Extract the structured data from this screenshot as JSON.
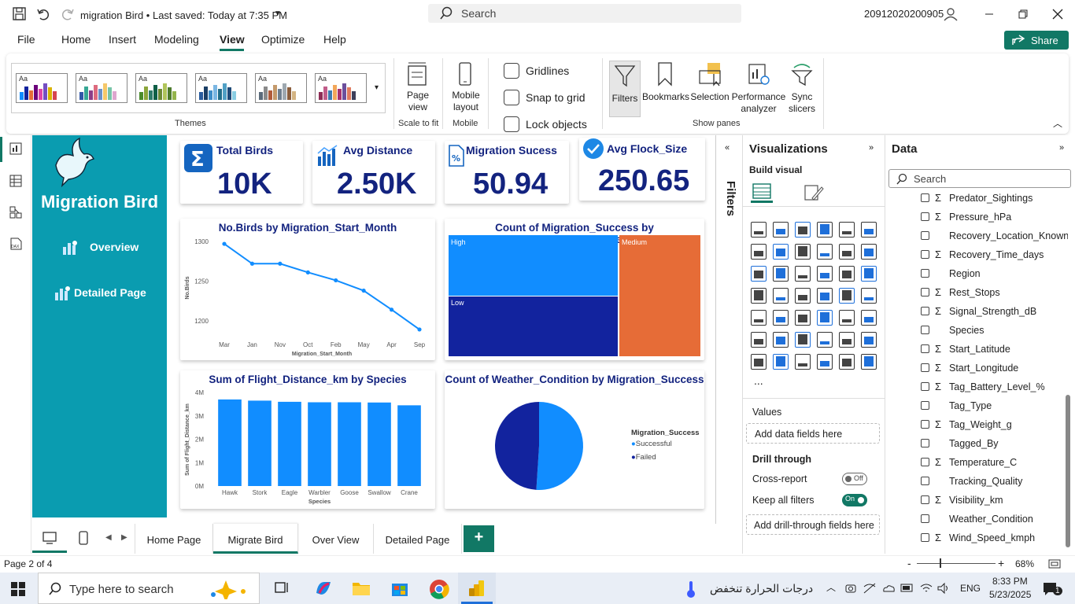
{
  "titlebar": {
    "doc_title": "migration Bird • Last saved: Today at 7:35 PM",
    "search_placeholder": "Search",
    "user_id": "20912020200905"
  },
  "menu": {
    "items": [
      "File",
      "Home",
      "Insert",
      "Modeling",
      "View",
      "Optimize",
      "Help"
    ],
    "active": "View",
    "share": "Share"
  },
  "ribbon": {
    "themes_label": "Themes",
    "theme_aa": "Aa",
    "page_view": "Page view",
    "scale_to_fit": "Scale to fit",
    "mobile_layout": "Mobile layout",
    "mobile": "Mobile",
    "gridlines": "Gridlines",
    "snap_to_grid": "Snap to grid",
    "lock_objects": "Lock objects",
    "filters": "Filters",
    "bookmarks": "Bookmarks",
    "selection": "Selection",
    "performance": "Performance analyzer",
    "sync": "Sync slicers",
    "show_panes": "Show panes"
  },
  "report": {
    "brand": "Migration Bird",
    "nav_overview": "Overview",
    "nav_detailed": "Detailed Page",
    "kpis": [
      {
        "label": "Total Birds",
        "value": "10K"
      },
      {
        "label": "Avg Distance",
        "value": "2.50K"
      },
      {
        "label": "Migration Sucess",
        "value": "50.94"
      },
      {
        "label": "Avg Flock_Size",
        "value": "250.65"
      }
    ]
  },
  "chart_data": [
    {
      "type": "line",
      "title": "No.Birds by Migration_Start_Month",
      "categories": [
        "Mar",
        "Jan",
        "Nov",
        "Oct",
        "Feb",
        "May",
        "Apr",
        "Sep"
      ],
      "values": [
        1297,
        1272,
        1272,
        1261,
        1251,
        1238,
        1214,
        1189
      ],
      "xlabel": "Migration_Start_Month",
      "ylabel": "No.Birds",
      "yticks": [
        "1300",
        "1250",
        "1200"
      ],
      "ylim": [
        1180,
        1305
      ]
    },
    {
      "type": "treemap",
      "title": "Count of Migration_Success by Food_Supply_Level",
      "labels": [
        "High",
        "Low",
        "Medium"
      ],
      "colors": [
        "#118dff",
        "#12239e",
        "#e66c37"
      ]
    },
    {
      "type": "bar",
      "title": "Sum of Flight_Distance_km by Species",
      "categories": [
        "Hawk",
        "Stork",
        "Eagle",
        "Warbler",
        "Goose",
        "Swallow",
        "Crane"
      ],
      "values": [
        3.7,
        3.65,
        3.6,
        3.58,
        3.58,
        3.57,
        3.45
      ],
      "xlabel": "Species",
      "ylabel": "Sum of Flight_Distance_km",
      "yticks": [
        "4M",
        "3M",
        "2M",
        "1M",
        "0M"
      ],
      "ylim": [
        0,
        4
      ]
    },
    {
      "type": "pie",
      "title": "Count of Weather_Condition by Migration_Success",
      "legend_title": "Migration_Success",
      "labels": [
        "Successful",
        "Failed"
      ],
      "values": [
        51,
        49
      ],
      "colors": [
        "#118dff",
        "#12239e"
      ]
    }
  ],
  "filters_pane": {
    "label": "Filters"
  },
  "viz": {
    "title": "Visualizations",
    "build_visual": "Build visual",
    "values": "Values",
    "add_data": "Add data fields here",
    "drill_through": "Drill through",
    "cross_report": "Cross-report",
    "cross_state": "Off",
    "keep_filters": "Keep all filters",
    "keep_state": "On",
    "add_drill": "Add drill-through fields here",
    "more": "..."
  },
  "data": {
    "title": "Data",
    "search_placeholder": "Search",
    "fields": [
      {
        "name": "Predator_Sightings",
        "sigma": "Σ"
      },
      {
        "name": "Pressure_hPa",
        "sigma": "Σ"
      },
      {
        "name": "Recovery_Location_Known",
        "sigma": ""
      },
      {
        "name": "Recovery_Time_days",
        "sigma": "Σ"
      },
      {
        "name": "Region",
        "sigma": ""
      },
      {
        "name": "Rest_Stops",
        "sigma": "Σ"
      },
      {
        "name": "Signal_Strength_dB",
        "sigma": "Σ"
      },
      {
        "name": "Species",
        "sigma": ""
      },
      {
        "name": "Start_Latitude",
        "sigma": "Σ"
      },
      {
        "name": "Start_Longitude",
        "sigma": "Σ"
      },
      {
        "name": "Tag_Battery_Level_%",
        "sigma": "Σ"
      },
      {
        "name": "Tag_Type",
        "sigma": ""
      },
      {
        "name": "Tag_Weight_g",
        "sigma": "Σ"
      },
      {
        "name": "Tagged_By",
        "sigma": ""
      },
      {
        "name": "Temperature_C",
        "sigma": "Σ"
      },
      {
        "name": "Tracking_Quality",
        "sigma": ""
      },
      {
        "name": "Visibility_km",
        "sigma": "Σ"
      },
      {
        "name": "Weather_Condition",
        "sigma": ""
      },
      {
        "name": "Wind_Speed_kmph",
        "sigma": "Σ"
      }
    ]
  },
  "pages": {
    "tabs": [
      "Home Page",
      "Migrate Bird",
      "Over View",
      "Detailed Page"
    ],
    "active": "Migrate Bird",
    "add": "+"
  },
  "status": {
    "page": "Page 2 of 4",
    "zoom": "68%"
  },
  "taskbar": {
    "search": "Type here to search",
    "weather": "درجات الحرارة تنخفض",
    "lang": "ENG",
    "time": "8:33 PM",
    "date": "5/23/2025",
    "notif": "1"
  }
}
